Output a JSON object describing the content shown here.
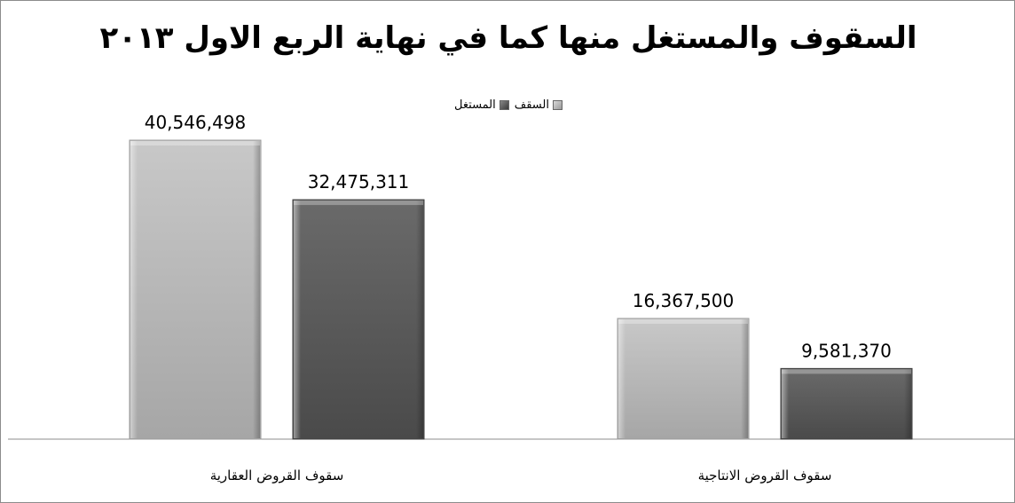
{
  "chart_data": {
    "type": "bar",
    "title": "السقوف والمستغل منها كما في نهاية الربع الاول ٢٠١٣",
    "categories": [
      "سقوف القروض العقارية",
      "سقوف القروض الانتاجية"
    ],
    "series": [
      {
        "name": "السقف",
        "values": [
          40546498,
          16367500
        ],
        "labels": [
          "40,546,498",
          "16,367,500"
        ],
        "color": "#b3b3b3"
      },
      {
        "name": "المستغل",
        "values": [
          32475311,
          9581370
        ],
        "labels": [
          "32,475,311",
          "9,581,370"
        ],
        "color": "#5a5a5a"
      }
    ],
    "ylim": [
      0,
      45000000
    ],
    "grid": false,
    "legend_position": "top"
  }
}
